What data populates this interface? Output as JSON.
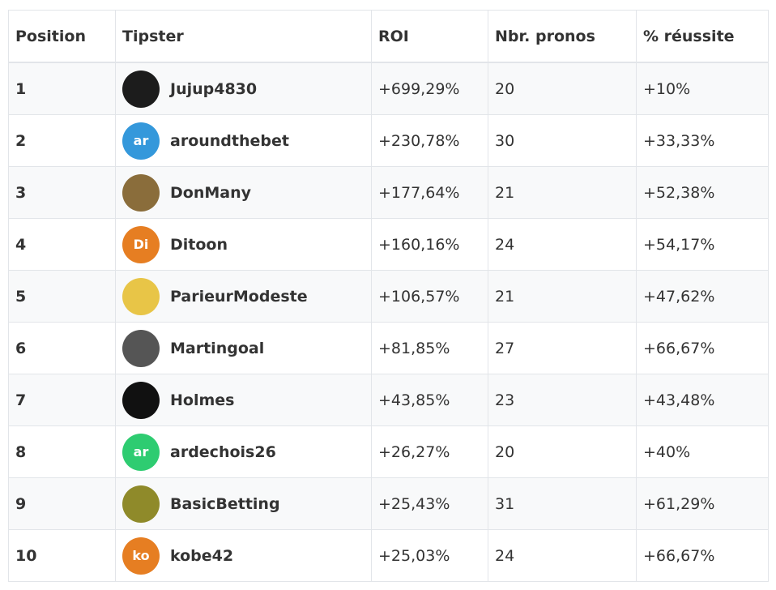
{
  "table": {
    "headers": [
      "Position",
      "Tipster",
      "ROI",
      "Nbr. pronos",
      "% réussite"
    ],
    "rows": [
      {
        "position": 1,
        "tipster": "Jujup4830",
        "roi": "+699,29%",
        "pronos": 20,
        "success": "+10%",
        "avatar_color": "#1c1c1c"
      },
      {
        "position": 2,
        "avatar": "ar",
        "tipster": "aroundthebet",
        "roi": "+230,78%",
        "pronos": 30,
        "success": "+33,33%",
        "avatar_color": "#3498db"
      },
      {
        "position": 3,
        "tipster": "DonMany",
        "roi": "+177,64%",
        "pronos": 21,
        "success": "+52,38%",
        "avatar_color": "#8a6d3b"
      },
      {
        "position": 4,
        "avatar": "Di",
        "tipster": "Ditoon",
        "roi": "+160,16%",
        "pronos": 24,
        "success": "+54,17%",
        "avatar_color": "#e67e22"
      },
      {
        "position": 5,
        "tipster": "ParieurModeste",
        "roi": "+106,57%",
        "pronos": 21,
        "success": "+47,62%",
        "avatar_color": "#e8c547"
      },
      {
        "position": 6,
        "tipster": "Martingoal",
        "roi": "+81,85%",
        "pronos": 27,
        "success": "+66,67%",
        "avatar_color": "#555555"
      },
      {
        "position": 7,
        "tipster": "Holmes",
        "roi": "+43,85%",
        "pronos": 23,
        "success": "+43,48%",
        "avatar_color": "#111111"
      },
      {
        "position": 8,
        "avatar": "ar",
        "tipster": "ardechois26",
        "roi": "+26,27%",
        "pronos": 20,
        "success": "+40%",
        "avatar_color": "#2ecc71"
      },
      {
        "position": 9,
        "tipster": "BasicBetting",
        "roi": "+25,43%",
        "pronos": 31,
        "success": "+61,29%",
        "avatar_color": "#8f8a2a"
      },
      {
        "position": 10,
        "avatar": "ko",
        "tipster": "kobe42",
        "roi": "+25,03%",
        "pronos": 24,
        "success": "+66,67%",
        "avatar_color": "#e67e22"
      }
    ]
  }
}
